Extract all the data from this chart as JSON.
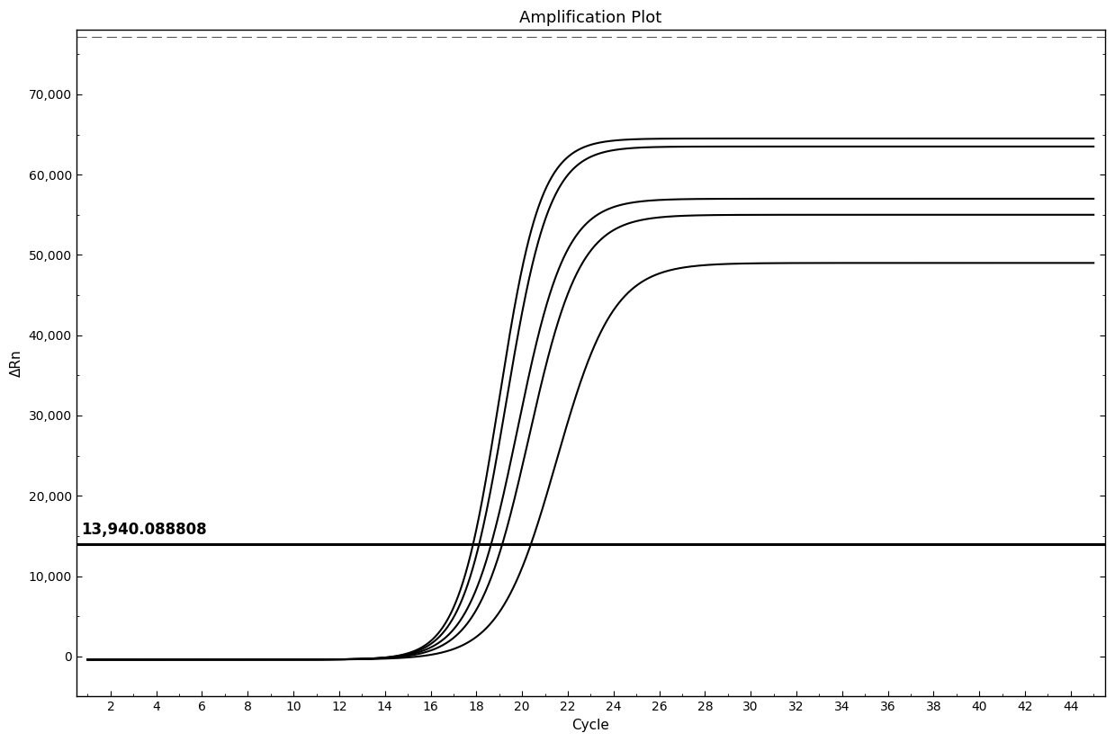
{
  "title": "Amplification Plot",
  "xlabel": "Cycle",
  "ylabel": "ΔRn",
  "xlim": [
    0.5,
    45.5
  ],
  "ylim": [
    -5000,
    78000
  ],
  "xticks": [
    2,
    4,
    6,
    8,
    10,
    12,
    14,
    16,
    18,
    20,
    22,
    24,
    26,
    28,
    30,
    32,
    34,
    36,
    38,
    40,
    42,
    44
  ],
  "yticks": [
    0,
    10000,
    20000,
    30000,
    40000,
    50000,
    60000,
    70000
  ],
  "ytick_labels": [
    "0",
    "10,000",
    "20,000",
    "30,000",
    "40,000",
    "50,000",
    "60,000",
    "70,000"
  ],
  "threshold_y": 13940.088808,
  "threshold_label": "13,940.088808",
  "background_color": "#ffffff",
  "line_color": "#000000",
  "threshold_color": "#000000",
  "title_fontsize": 13,
  "axis_fontsize": 11,
  "tick_fontsize": 10,
  "curves": [
    {
      "midpoint": 19.0,
      "lower": -400,
      "upper": 64500,
      "steepness": 1.1
    },
    {
      "midpoint": 19.3,
      "lower": -400,
      "upper": 63500,
      "steepness": 1.05
    },
    {
      "midpoint": 19.8,
      "lower": -400,
      "upper": 57000,
      "steepness": 0.95
    },
    {
      "midpoint": 20.3,
      "lower": -400,
      "upper": 55000,
      "steepness": 0.9
    },
    {
      "midpoint": 21.5,
      "lower": -400,
      "upper": 49000,
      "steepness": 0.8
    }
  ],
  "top_dashed_y": 77200
}
